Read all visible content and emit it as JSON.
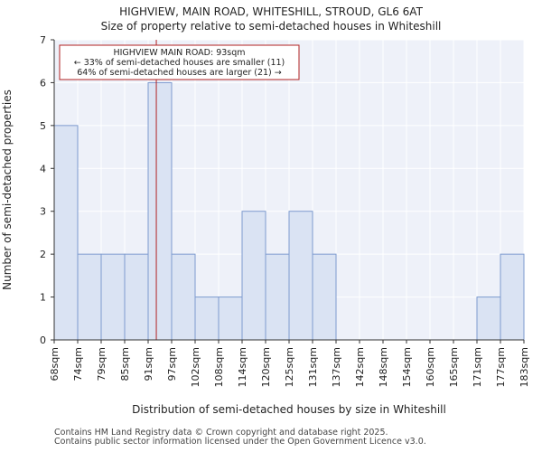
{
  "header": {
    "title": "HIGHVIEW, MAIN ROAD, WHITESHILL, STROUD, GL6 6AT",
    "subtitle": "Size of property relative to semi-detached houses in Whiteshill"
  },
  "footer": {
    "line1": "Contains HM Land Registry data © Crown copyright and database right 2025.",
    "line2": "Contains public sector information licensed under the Open Government Licence v3.0."
  },
  "chart_data": {
    "type": "bar",
    "title": "Size of property relative to semi-detached houses in Whiteshill",
    "xlabel": "Distribution of semi-detached houses by size in Whiteshill",
    "ylabel": "Number of semi-detached properties",
    "categories": [
      "68sqm",
      "74sqm",
      "79sqm",
      "85sqm",
      "91sqm",
      "97sqm",
      "102sqm",
      "108sqm",
      "114sqm",
      "120sqm",
      "125sqm",
      "131sqm",
      "137sqm",
      "142sqm",
      "148sqm",
      "154sqm",
      "160sqm",
      "165sqm",
      "171sqm",
      "177sqm",
      "183sqm"
    ],
    "values": [
      5,
      2,
      2,
      2,
      6,
      2,
      1,
      1,
      3,
      2,
      3,
      2,
      0,
      0,
      0,
      0,
      0,
      0,
      1,
      0,
      2
    ],
    "ylim": [
      0,
      7
    ],
    "yticks": [
      0,
      1,
      2,
      3,
      4,
      5,
      6,
      7
    ],
    "grid": true,
    "marker": {
      "value": 93,
      "unit": "sqm",
      "label": "HIGHVIEW MAIN ROAD: 93sqm",
      "line2": "← 33% of semi-detached houses are smaller (11)",
      "line3": "64% of semi-detached houses are larger (21) →"
    },
    "colors": {
      "bar_fill": "#dae3f3",
      "bar_stroke": "#7e9bcf",
      "plot_bg": "#eef1f9",
      "grid": "#ffffff",
      "marker": "#b22222"
    }
  }
}
